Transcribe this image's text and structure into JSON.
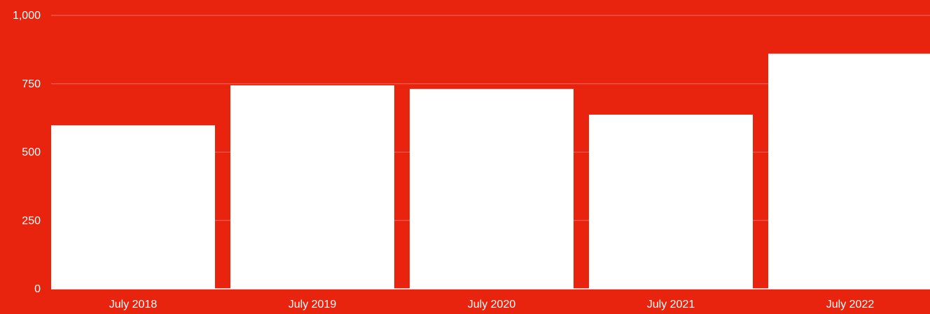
{
  "colors": {
    "background": "#e8240e",
    "bar": "#ffffff",
    "gridline": "#f26a5c",
    "text": "#ffffff"
  },
  "chart_data": {
    "type": "bar",
    "categories": [
      "July 2018",
      "July 2019",
      "July 2020",
      "July 2021",
      "July 2022"
    ],
    "values": [
      598,
      744,
      731,
      637,
      860
    ],
    "title": "",
    "xlabel": "",
    "ylabel": "",
    "ylim": [
      0,
      1000
    ],
    "yticks": [
      0,
      250,
      500,
      750,
      1000
    ],
    "ytick_labels": [
      "0",
      "250",
      "500",
      "750",
      "1,000"
    ],
    "grid": true,
    "legend": "none"
  }
}
